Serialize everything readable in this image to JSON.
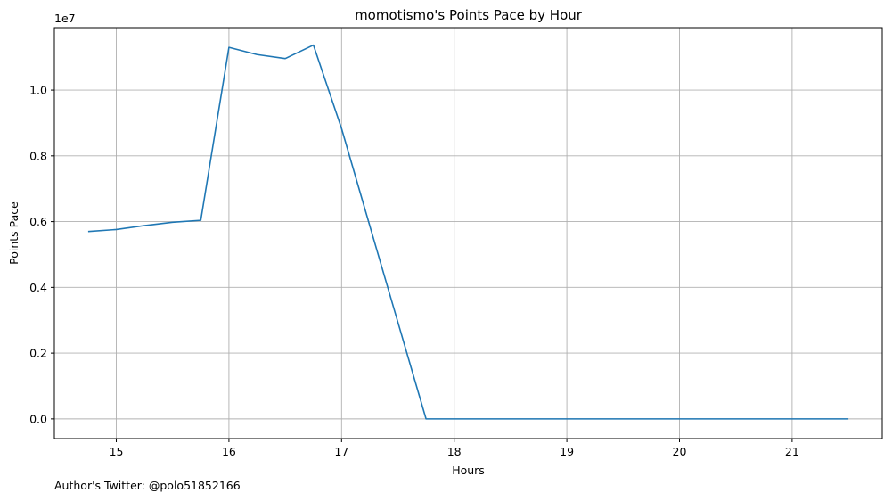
{
  "chart_data": {
    "type": "line",
    "title": "momotismo's Points Pace by Hour",
    "xlabel": "Hours",
    "ylabel": "Points Pace",
    "y_offset_label": "1e7",
    "xlim": [
      14.45,
      21.8
    ],
    "ylim": [
      -600000,
      11900000
    ],
    "x_ticks": [
      15,
      16,
      17,
      18,
      19,
      20,
      21
    ],
    "y_ticks": [
      0,
      2000000,
      4000000,
      6000000,
      8000000,
      10000000
    ],
    "y_tick_labels": [
      "0.0",
      "0.2",
      "0.4",
      "0.6",
      "0.8",
      "1.0"
    ],
    "grid": true,
    "line_color": "#1f77b4",
    "grid_color": "#b0b0b0",
    "series": [
      {
        "x": [
          14.75,
          15.0,
          15.25,
          15.5,
          15.75,
          16.0,
          16.25,
          16.5,
          16.75,
          17.0,
          17.25,
          17.5,
          17.75,
          18.0,
          18.25,
          18.5,
          18.75,
          19.0,
          19.25,
          19.5,
          19.75,
          20.0,
          20.25,
          20.5,
          20.75,
          21.0,
          21.25,
          21.5
        ],
        "y": [
          5700000,
          5760000,
          5880000,
          5980000,
          6040000,
          11300000,
          11080000,
          10960000,
          11370000,
          8830000,
          5880000,
          2940000,
          0,
          0,
          0,
          0,
          0,
          0,
          0,
          0,
          0,
          0,
          0,
          0,
          0,
          0,
          0,
          0
        ]
      }
    ]
  },
  "footer": {
    "text": "Author's Twitter: @polo51852166"
  }
}
